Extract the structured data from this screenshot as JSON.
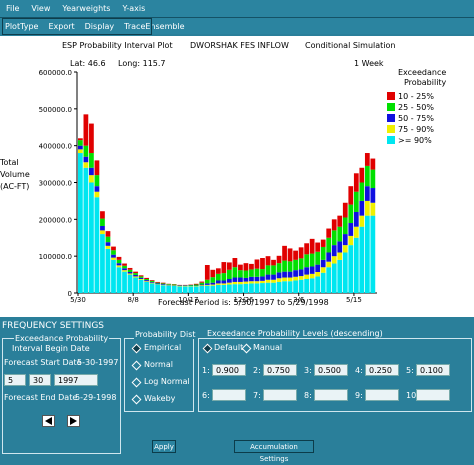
{
  "menu": [
    "File",
    "View",
    "Yearweights",
    "Y-axis"
  ],
  "toolbar": [
    "PlotType",
    "Export",
    "Display",
    "TraceEnsemble"
  ],
  "plot": {
    "header_left": "ESP Probability Interval Plot",
    "header_mid": "DWORSHAK FES INFLOW",
    "header_right": "Conditional Simulation",
    "lat": "Lat: 46.6",
    "long": "Long: 115.7",
    "week": "1 Week",
    "forecast_period": "Forecast Period is: 5/30/1997 to 5/29/1998",
    "ylabel_lines": [
      "Total",
      "Volume",
      "(AC-FT)"
    ]
  },
  "legend": {
    "title_lines": [
      "Exceedance",
      "Probability"
    ],
    "entries": [
      {
        "label": "10 - 25%",
        "color": "#e00000"
      },
      {
        "label": "25 - 50%",
        "color": "#00e000"
      },
      {
        "label": "50 - 75%",
        "color": "#1010e0"
      },
      {
        "label": "75 - 90%",
        "color": "#f0f000"
      },
      {
        "label": ">= 90%",
        "color": "#00e6f0"
      }
    ]
  },
  "chart_data": {
    "type": "bar",
    "stacked": true,
    "ylim": [
      0,
      600000
    ],
    "yticks": [
      "0",
      "100000.0",
      "200000.0",
      "300000.0",
      "400000.0",
      "500000.0",
      "600000.0"
    ],
    "xticks": [
      "5/30",
      "8/8",
      "10/17",
      "12/26",
      "3/6",
      "5/15"
    ],
    "series_order": [
      ">= 90%",
      "75 - 90%",
      "50 - 75%",
      "25 - 50%",
      "10 - 25%"
    ],
    "weeks": [
      [
        380000,
        10000,
        10000,
        15000,
        5000
      ],
      [
        340000,
        15000,
        15000,
        30000,
        85000
      ],
      [
        300000,
        20000,
        20000,
        40000,
        80000
      ],
      [
        260000,
        15000,
        15000,
        30000,
        40000
      ],
      [
        160000,
        10000,
        12000,
        20000,
        20000
      ],
      [
        120000,
        8000,
        10000,
        15000,
        15000
      ],
      [
        90000,
        6000,
        8000,
        12000,
        10000
      ],
      [
        70000,
        5000,
        6000,
        9000,
        8000
      ],
      [
        58000,
        4000,
        5000,
        7000,
        6000
      ],
      [
        50000,
        3000,
        4000,
        6000,
        5000
      ],
      [
        42000,
        3000,
        4000,
        5000,
        4000
      ],
      [
        36000,
        2000,
        3000,
        4000,
        3000
      ],
      [
        30000,
        2000,
        3000,
        3000,
        3000
      ],
      [
        26000,
        2000,
        2000,
        3000,
        2000
      ],
      [
        23000,
        1000,
        2000,
        2000,
        2000
      ],
      [
        21000,
        1000,
        2000,
        2000,
        2000
      ],
      [
        20000,
        1000,
        1000,
        2000,
        1000
      ],
      [
        19000,
        1000,
        1000,
        2000,
        1000
      ],
      [
        18000,
        1000,
        1000,
        1000,
        1000
      ],
      [
        18000,
        1000,
        1000,
        1000,
        1000
      ],
      [
        18000,
        1000,
        1000,
        2000,
        1000
      ],
      [
        18000,
        1000,
        1000,
        3000,
        2000
      ],
      [
        19000,
        2000,
        2000,
        5000,
        3000
      ],
      [
        20000,
        2000,
        4000,
        10000,
        40000
      ],
      [
        20000,
        3000,
        5000,
        15000,
        20000
      ],
      [
        22000,
        4000,
        8000,
        18000,
        15000
      ],
      [
        22000,
        4000,
        8000,
        20000,
        30000
      ],
      [
        23000,
        5000,
        10000,
        25000,
        20000
      ],
      [
        24000,
        6000,
        12000,
        28000,
        25000
      ],
      [
        24000,
        6000,
        12000,
        20000,
        15000
      ],
      [
        25000,
        6000,
        10000,
        20000,
        20000
      ],
      [
        26000,
        6000,
        12000,
        20000,
        15000
      ],
      [
        26000,
        6000,
        12000,
        22000,
        25000
      ],
      [
        27000,
        6000,
        12000,
        20000,
        30000
      ],
      [
        28000,
        8000,
        14000,
        25000,
        25000
      ],
      [
        28000,
        8000,
        14000,
        25000,
        15000
      ],
      [
        30000,
        10000,
        16000,
        25000,
        20000
      ],
      [
        32000,
        10000,
        16000,
        30000,
        40000
      ],
      [
        32000,
        10000,
        16000,
        28000,
        35000
      ],
      [
        34000,
        10000,
        18000,
        28000,
        25000
      ],
      [
        36000,
        10000,
        18000,
        30000,
        30000
      ],
      [
        38000,
        12000,
        20000,
        35000,
        30000
      ],
      [
        40000,
        12000,
        20000,
        35000,
        40000
      ],
      [
        45000,
        12000,
        20000,
        35000,
        25000
      ],
      [
        55000,
        15000,
        20000,
        35000,
        20000
      ],
      [
        70000,
        15000,
        25000,
        40000,
        25000
      ],
      [
        80000,
        20000,
        30000,
        40000,
        30000
      ],
      [
        90000,
        20000,
        30000,
        40000,
        30000
      ],
      [
        110000,
        20000,
        30000,
        45000,
        40000
      ],
      [
        130000,
        25000,
        35000,
        50000,
        50000
      ],
      [
        150000,
        30000,
        40000,
        55000,
        50000
      ],
      [
        180000,
        30000,
        40000,
        50000,
        40000
      ],
      [
        210000,
        40000,
        40000,
        55000,
        35000
      ],
      [
        210000,
        35000,
        40000,
        50000,
        30000
      ]
    ]
  },
  "settings": {
    "title": "FREQUENCY SETTINGS",
    "exceedance_title": "Exceedance Probability",
    "interval_begin": "Interval Begin Date",
    "start_label": "Forecast Start Date",
    "start_value": "5-30-1997",
    "month": "5",
    "day": "30",
    "year": "1997",
    "end_label": "Forecast End Date",
    "end_value": "5-29-1998",
    "dist_title": "Probability Dist",
    "dist_options": [
      "Empirical",
      "Normal",
      "Log Normal",
      "Wakeby"
    ],
    "levels_title": "Exceedance Probability Levels (descending)",
    "default_label": "Default",
    "manual_label": "Manual",
    "levels": [
      {
        "n": "1:",
        "v": "0.900"
      },
      {
        "n": "2:",
        "v": "0.750"
      },
      {
        "n": "3:",
        "v": "0.500"
      },
      {
        "n": "4:",
        "v": "0.250"
      },
      {
        "n": "5:",
        "v": "0.100"
      },
      {
        "n": "6:",
        "v": ""
      },
      {
        "n": "7:",
        "v": ""
      },
      {
        "n": "8:",
        "v": ""
      },
      {
        "n": "9:",
        "v": ""
      },
      {
        "n": "10:",
        "v": ""
      }
    ],
    "apply": "Apply",
    "accumulation": "Accumulation Settings"
  }
}
